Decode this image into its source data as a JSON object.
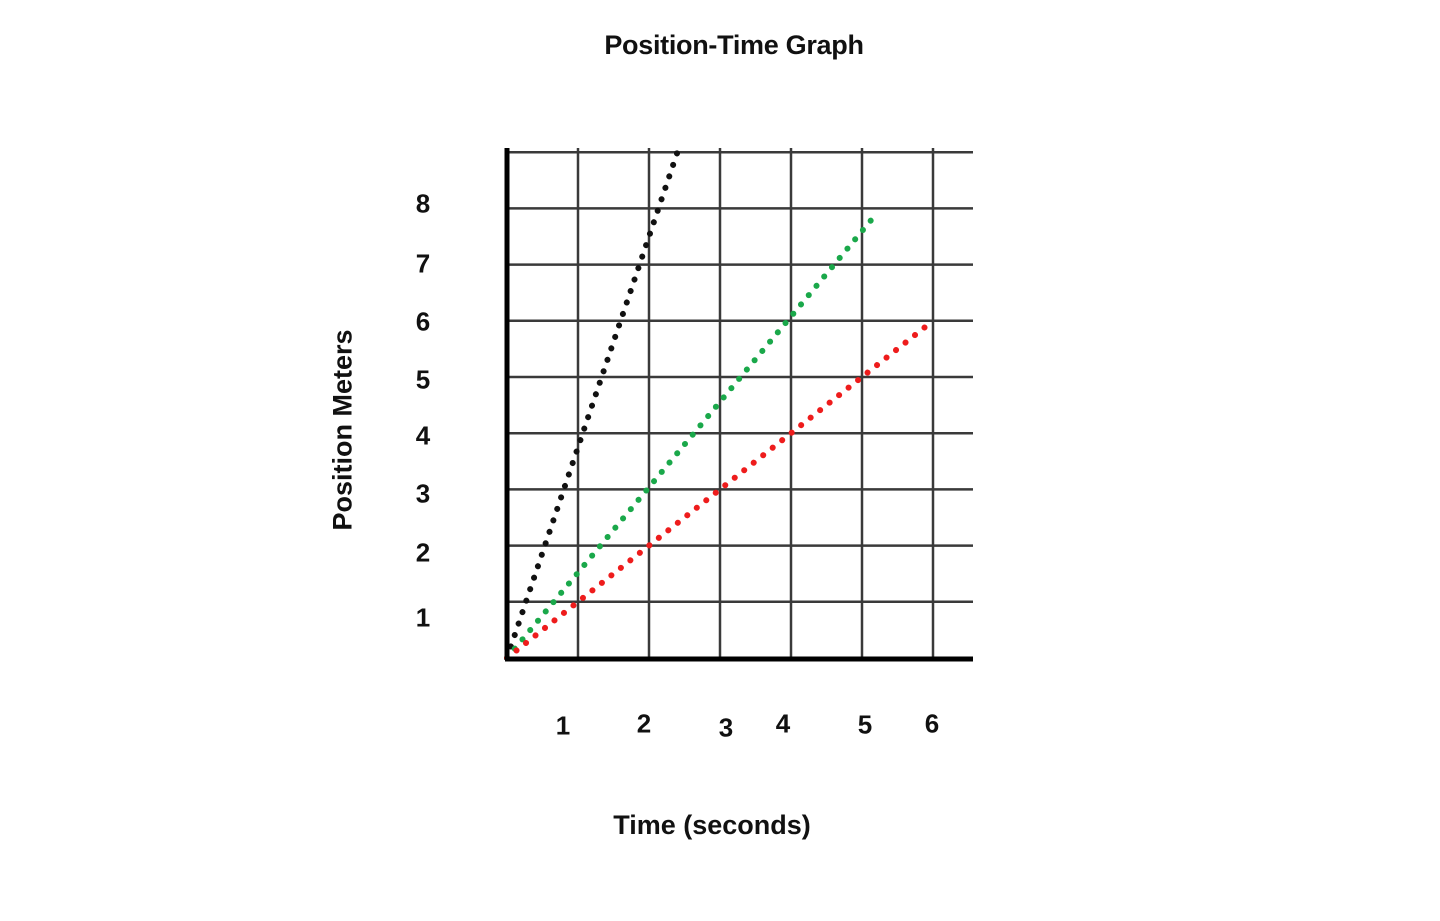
{
  "chart_data": {
    "type": "line",
    "title": "Position-Time Graph",
    "xlabel": "Time (seconds)",
    "ylabel": "Position Meters",
    "x_ticks": [
      "1",
      "2",
      "3",
      "4",
      "5",
      "6"
    ],
    "y_ticks": [
      "1",
      "2",
      "3",
      "4",
      "5",
      "6",
      "7",
      "8"
    ],
    "xlim": [
      0,
      6.5
    ],
    "ylim": [
      0,
      9
    ],
    "grid": true,
    "legend": null,
    "line_style": "dotted",
    "series": [
      {
        "name": "black line",
        "color": "#111111",
        "points": [
          [
            0,
            0
          ],
          [
            2.4,
            9
          ]
        ]
      },
      {
        "name": "green line",
        "color": "#1aa84a",
        "points": [
          [
            0,
            0
          ],
          [
            5.2,
            7.9
          ]
        ]
      },
      {
        "name": "red line",
        "color": "#ee1c1c",
        "points": [
          [
            0,
            0
          ],
          [
            6,
            6
          ]
        ]
      }
    ]
  }
}
